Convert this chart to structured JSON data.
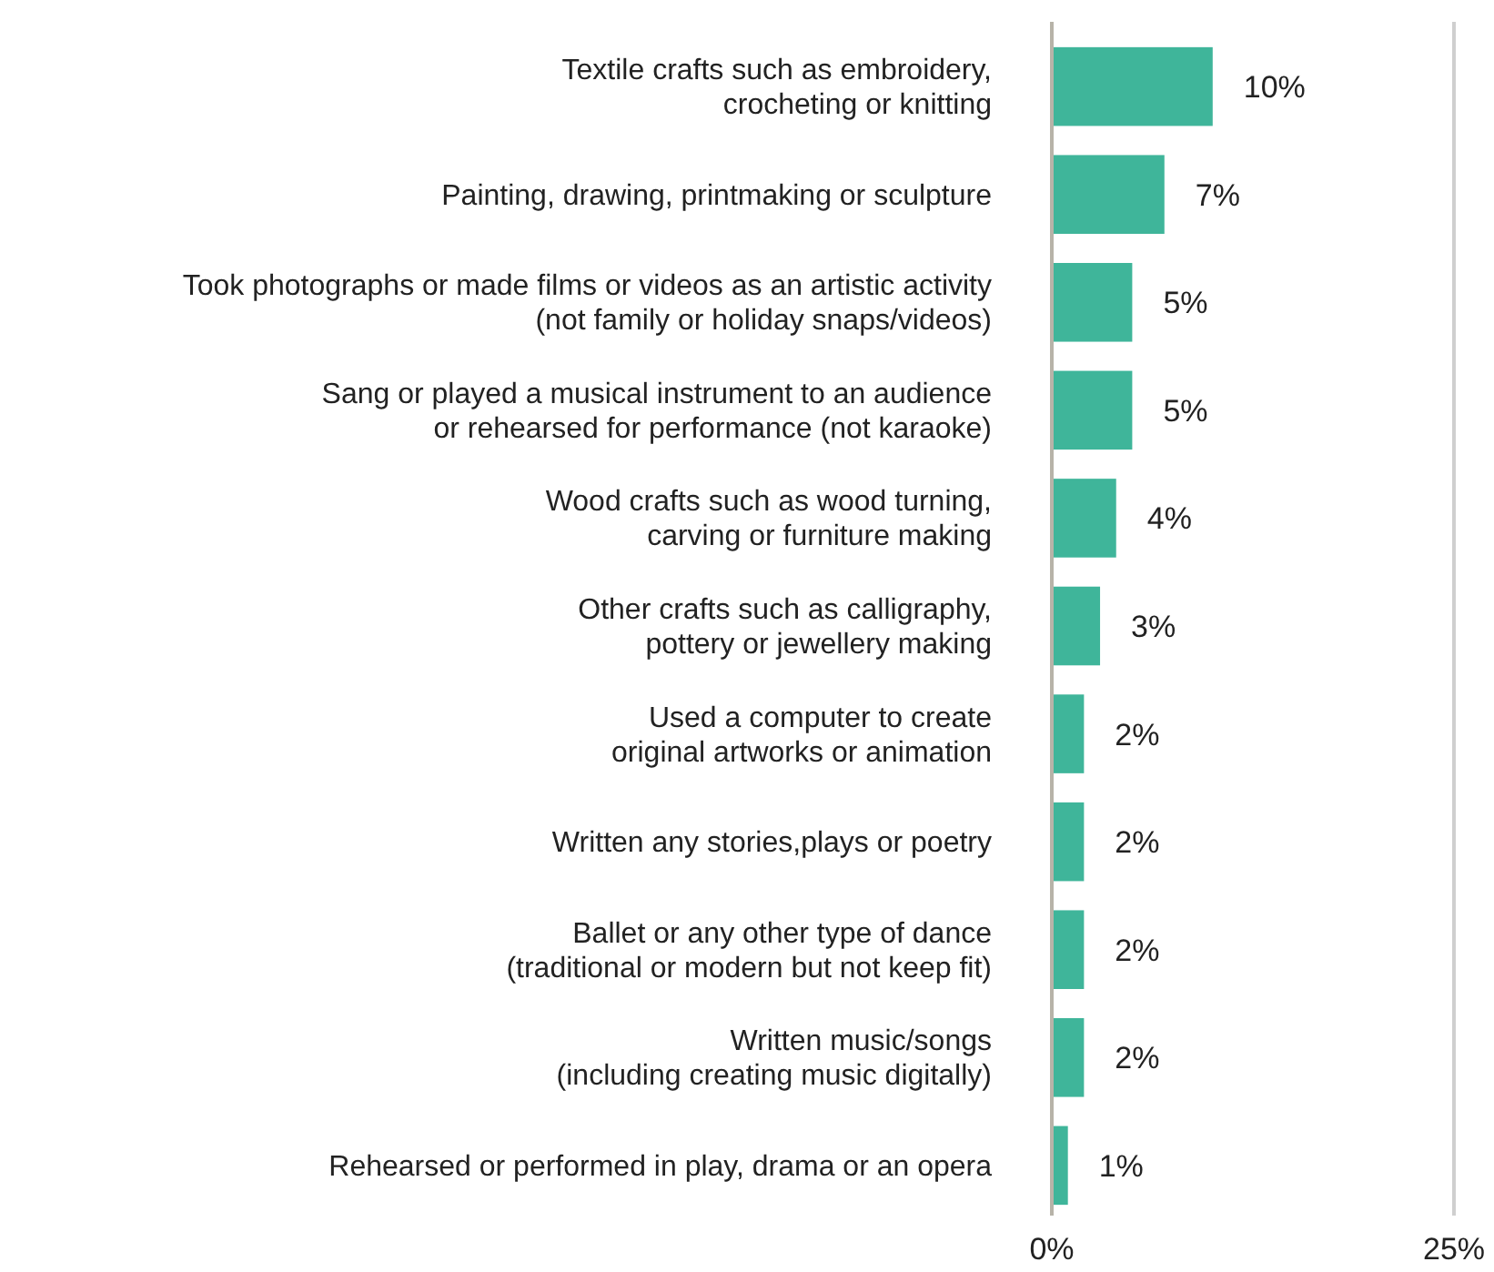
{
  "chart_data": {
    "type": "bar",
    "orientation": "horizontal",
    "categories": [
      "Textile crafts such as embroidery,\ncrocheting or knitting",
      "Painting, drawing, printmaking or sculpture",
      "Took photographs or made films or videos as an artistic activity\n(not family or holiday snaps/videos)",
      "Sang or played a musical instrument to an audience\nor rehearsed for performance (not karaoke)",
      "Wood crafts such as wood turning,\ncarving or furniture making",
      "Other crafts such as calligraphy,\npottery or jewellery making",
      "Used a computer to create\noriginal artworks or animation",
      "Written any stories,plays or poetry",
      "Ballet or any other type of dance\n(traditional or modern but not keep fit)",
      "Written music/songs\n(including creating music digitally)",
      "Rehearsed or performed in play, drama or an opera"
    ],
    "values": [
      10,
      7,
      5,
      5,
      4,
      3,
      2,
      2,
      2,
      2,
      1
    ],
    "value_labels": [
      "10%",
      "7%",
      "5%",
      "5%",
      "4%",
      "3%",
      "2%",
      "2%",
      "2%",
      "2%",
      "1%"
    ],
    "color": "#3fb59a",
    "xlim": [
      0,
      25
    ],
    "xticks": [
      {
        "value": 0,
        "label": "0%"
      },
      {
        "value": 25,
        "label": "25%"
      }
    ]
  }
}
